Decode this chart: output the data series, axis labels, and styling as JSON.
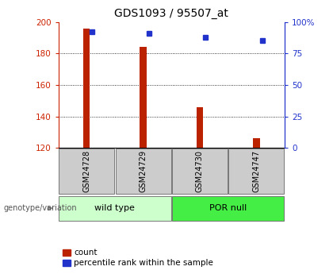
{
  "title": "GDS1093 / 95507_at",
  "samples": [
    "GSM24728",
    "GSM24729",
    "GSM24730",
    "GSM24747"
  ],
  "counts": [
    196,
    184,
    146,
    126
  ],
  "percentile_ranks": [
    92,
    91,
    88,
    85
  ],
  "y_min": 120,
  "y_max": 200,
  "y_ticks": [
    120,
    140,
    160,
    180,
    200
  ],
  "y2_ticks": [
    0,
    25,
    50,
    75,
    100
  ],
  "y2_tick_labels": [
    "0",
    "25",
    "50",
    "75",
    "100%"
  ],
  "bar_color": "#bb2200",
  "dot_color": "#2233cc",
  "groups": [
    {
      "label": "wild type",
      "samples": [
        0,
        1
      ],
      "color": "#ccffcc"
    },
    {
      "label": "POR null",
      "samples": [
        2,
        3
      ],
      "color": "#44ee44"
    }
  ],
  "group_label_prefix": "genotype/variation",
  "legend_count_label": "count",
  "legend_pct_label": "percentile rank within the sample",
  "bar_width": 0.12,
  "title_fontsize": 10,
  "tick_fontsize": 7.5,
  "xlabel_box_color": "#cccccc"
}
